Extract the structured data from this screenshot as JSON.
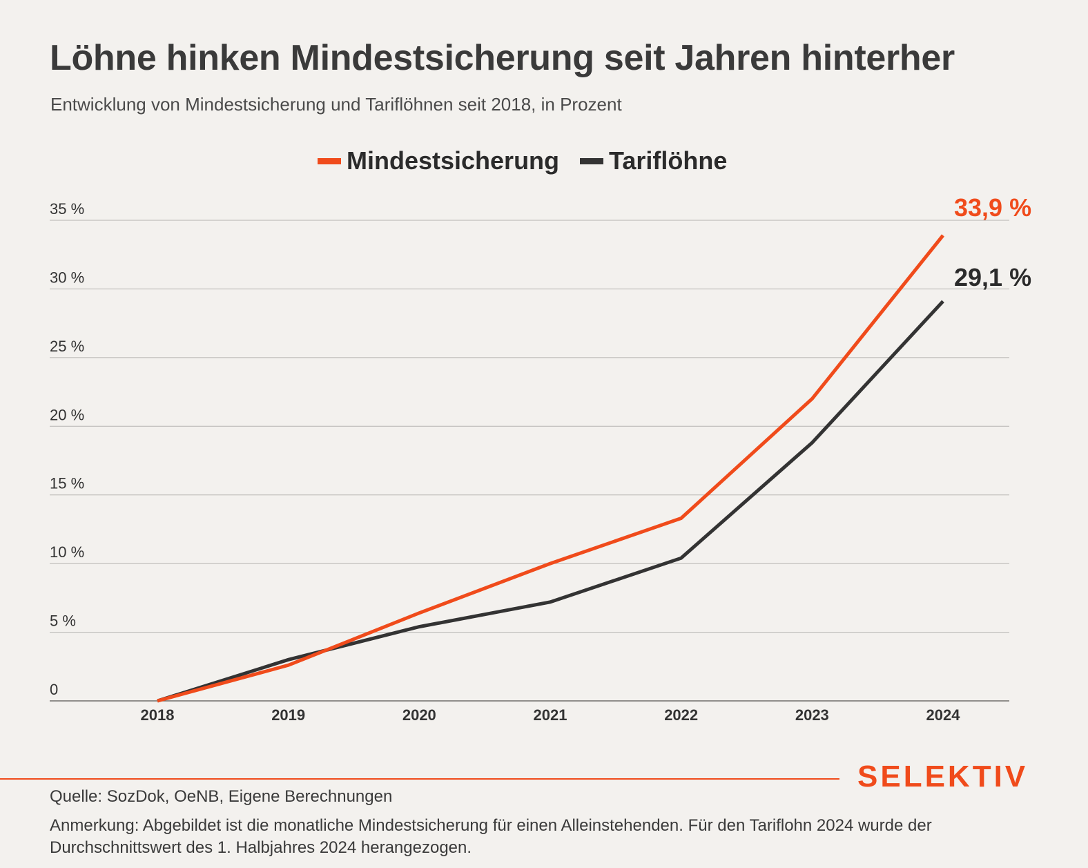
{
  "header": {
    "title": "Löhne hinken Mindestsicherung seit Jahren hinterher",
    "subtitle": "Entwicklung von Mindestsicherung und Tariflöhnen seit 2018, in Prozent"
  },
  "colors": {
    "accent": "#f04b1b",
    "dark": "#333333",
    "grid": "#b5b3b0",
    "background": "#f3f1ee"
  },
  "chart_data": {
    "type": "line",
    "title": "Löhne hinken Mindestsicherung seit Jahren hinterher",
    "subtitle": "Entwicklung von Mindestsicherung und Tariflöhnen seit 2018, in Prozent",
    "x": [
      "2018",
      "2019",
      "2020",
      "2021",
      "2022",
      "2023",
      "2024"
    ],
    "series": [
      {
        "name": "Mindestsicherung",
        "color": "#f04b1b",
        "values": [
          0,
          2.6,
          6.4,
          10.0,
          13.3,
          22.0,
          33.9
        ],
        "end_label": "33,9 %"
      },
      {
        "name": "Tariflöhne",
        "color": "#333333",
        "values": [
          0,
          3.0,
          5.4,
          7.2,
          10.4,
          18.8,
          29.1
        ],
        "end_label": "29,1 %"
      }
    ],
    "ylim": [
      0,
      35
    ],
    "yticks": [
      0,
      5,
      10,
      15,
      20,
      25,
      30,
      35
    ],
    "ytick_labels": [
      "0",
      "5 %",
      "10 %",
      "15 %",
      "20 %",
      "25 %",
      "30 %",
      "35 %"
    ],
    "grid": true,
    "legend_position": "top-center",
    "xlabel": "",
    "ylabel": ""
  },
  "footer": {
    "brand": "SELEKTIV",
    "source": "Quelle: SozDok, OeNB, Eigene Berechnungen",
    "note": "Anmerkung: Abgebildet ist die monatliche Mindestsicherung für einen Alleinstehenden. Für den Tariflohn 2024 wurde der Durchschnittswert des 1. Halbjahres 2024 herangezogen."
  }
}
